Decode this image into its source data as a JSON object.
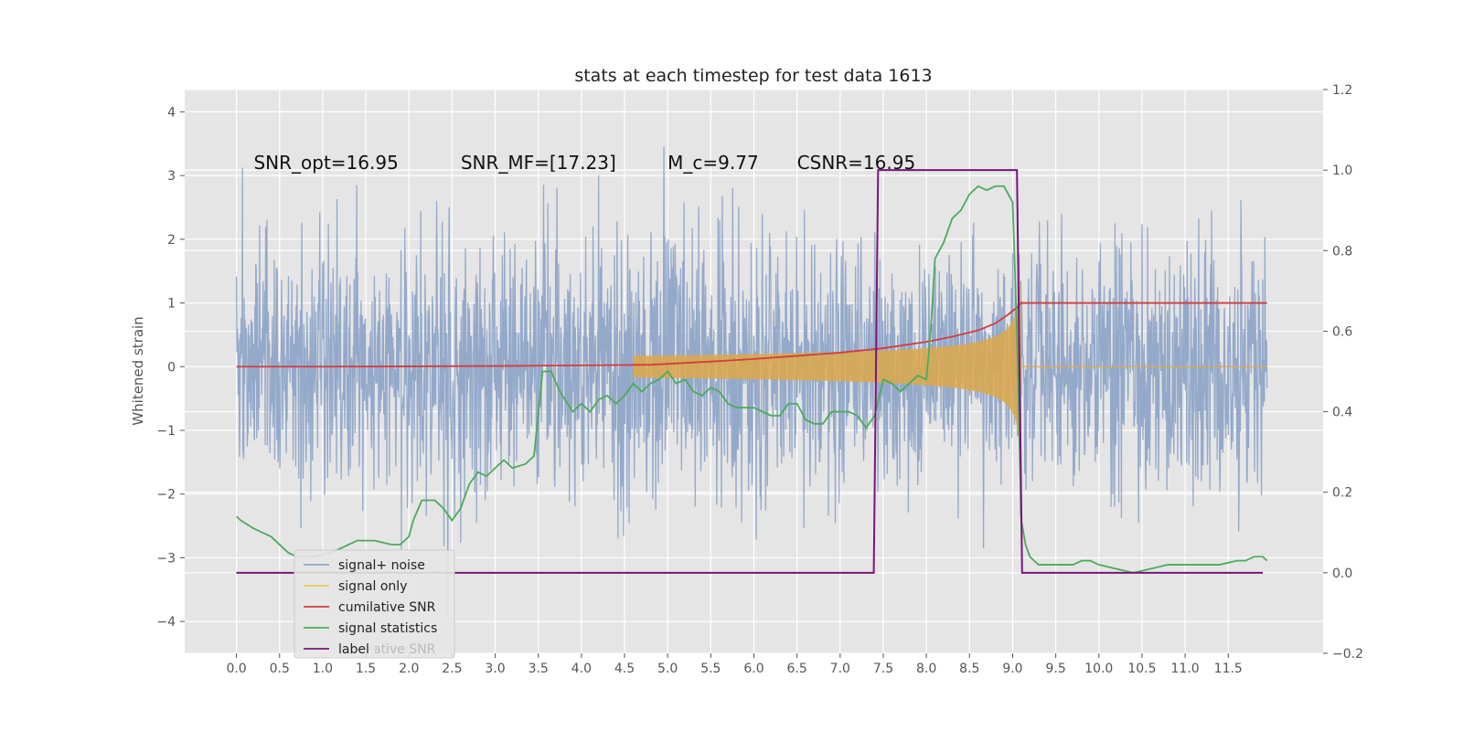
{
  "chart_data": {
    "type": "line",
    "title": "stats at each timestep for test data 1613",
    "ylabel": "Whitened strain",
    "xlabel": "",
    "xlim": [
      -0.6,
      12.6
    ],
    "ylim": [
      -4.5,
      4.35
    ],
    "y2lim": [
      -0.2,
      1.2
    ],
    "x_ticks": [
      "0.0",
      "0.5",
      "1.0",
      "1.5",
      "2.0",
      "2.5",
      "3.0",
      "3.5",
      "4.0",
      "4.5",
      "5.0",
      "5.5",
      "6.0",
      "6.5",
      "7.0",
      "7.5",
      "8.0",
      "8.5",
      "9.0",
      "9.5",
      "10.0",
      "10.5",
      "11.0",
      "11.5"
    ],
    "y_ticks": [
      "4",
      "3",
      "2",
      "1",
      "0",
      "−1",
      "−2",
      "−3",
      "−4"
    ],
    "y2_ticks": [
      "1.2",
      "1.0",
      "0.8",
      "0.6",
      "0.4",
      "0.2",
      "0.0",
      "−0.2"
    ],
    "grid": true,
    "annotations": [
      {
        "text": "SNR_opt=16.95",
        "x": 0.2,
        "y": 3.1
      },
      {
        "text": "SNR_MF=[17.23]",
        "x": 2.6,
        "y": 3.1
      },
      {
        "text": "M_c=9.77",
        "x": 5.0,
        "y": 3.1
      },
      {
        "text": "CSNR=16.95",
        "x": 6.5,
        "y": 3.1
      }
    ],
    "legend": {
      "placement": "lower-left",
      "entries": [
        "signal+ noise",
        "signal only",
        "cumilative SNR",
        "signal statistics",
        "label"
      ],
      "ghost_text": "cumilative SNR"
    },
    "series": [
      {
        "name": "signal+ noise",
        "axis": "left",
        "color": "#8fa5c8",
        "description_range": [
          0.0,
          11.95
        ],
        "noise_sigma": 1.0
      },
      {
        "name": "signal only",
        "axis": "left",
        "color": "#dda84a",
        "chirp_end": 9.1
      },
      {
        "name": "cumilative SNR",
        "axis": "left",
        "color": "#d23c3c",
        "x": [
          0.0,
          1.0,
          2.0,
          3.0,
          4.0,
          4.8,
          5.5,
          6.0,
          6.5,
          7.0,
          7.5,
          8.0,
          8.3,
          8.6,
          8.8,
          8.95,
          9.05,
          9.1,
          9.5,
          10.5,
          11.95
        ],
        "values": [
          0.0,
          0.0,
          0.005,
          0.01,
          0.02,
          0.03,
          0.08,
          0.12,
          0.17,
          0.22,
          0.29,
          0.39,
          0.47,
          0.57,
          0.68,
          0.82,
          0.93,
          1.0,
          1.0,
          1.0,
          1.0
        ]
      },
      {
        "name": "signal statistics",
        "axis": "right",
        "color": "#4caa5c",
        "x": [
          0.0,
          0.05,
          0.2,
          0.4,
          0.6,
          0.7,
          0.9,
          1.1,
          1.3,
          1.4,
          1.6,
          1.8,
          1.9,
          2.0,
          2.05,
          2.15,
          2.2,
          2.3,
          2.4,
          2.5,
          2.6,
          2.7,
          2.8,
          2.9,
          3.0,
          3.1,
          3.2,
          3.35,
          3.45,
          3.55,
          3.65,
          3.75,
          3.9,
          4.0,
          4.1,
          4.2,
          4.3,
          4.4,
          4.5,
          4.6,
          4.7,
          4.8,
          4.9,
          5.0,
          5.1,
          5.2,
          5.3,
          5.4,
          5.5,
          5.6,
          5.7,
          5.8,
          5.9,
          6.0,
          6.2,
          6.3,
          6.4,
          6.5,
          6.6,
          6.7,
          6.8,
          6.9,
          7.0,
          7.1,
          7.2,
          7.3,
          7.4,
          7.5,
          7.6,
          7.7,
          7.8,
          7.9,
          8.0,
          8.05,
          8.1,
          8.2,
          8.3,
          8.4,
          8.5,
          8.6,
          8.7,
          8.8,
          8.9,
          9.0,
          9.05,
          9.1,
          9.15,
          9.2,
          9.3,
          9.4,
          9.5,
          9.7,
          9.8,
          9.9,
          10.0,
          10.2,
          10.4,
          10.6,
          10.8,
          11.0,
          11.2,
          11.4,
          11.6,
          11.7,
          11.8,
          11.9,
          11.95
        ],
        "values": [
          0.14,
          0.13,
          0.11,
          0.09,
          0.05,
          0.04,
          0.04,
          0.05,
          0.07,
          0.08,
          0.08,
          0.07,
          0.07,
          0.09,
          0.13,
          0.18,
          0.18,
          0.18,
          0.16,
          0.13,
          0.16,
          0.22,
          0.25,
          0.24,
          0.26,
          0.28,
          0.26,
          0.27,
          0.29,
          0.5,
          0.5,
          0.45,
          0.4,
          0.42,
          0.4,
          0.43,
          0.44,
          0.42,
          0.44,
          0.47,
          0.45,
          0.47,
          0.48,
          0.5,
          0.47,
          0.48,
          0.45,
          0.44,
          0.46,
          0.45,
          0.42,
          0.41,
          0.41,
          0.41,
          0.39,
          0.39,
          0.42,
          0.42,
          0.38,
          0.37,
          0.37,
          0.4,
          0.4,
          0.4,
          0.39,
          0.36,
          0.39,
          0.48,
          0.47,
          0.45,
          0.47,
          0.49,
          0.48,
          0.6,
          0.78,
          0.82,
          0.88,
          0.9,
          0.94,
          0.96,
          0.95,
          0.96,
          0.96,
          0.92,
          0.6,
          0.13,
          0.07,
          0.04,
          0.02,
          0.02,
          0.02,
          0.02,
          0.03,
          0.03,
          0.02,
          0.01,
          0.0,
          0.01,
          0.02,
          0.02,
          0.02,
          0.02,
          0.03,
          0.03,
          0.04,
          0.04,
          0.03
        ]
      },
      {
        "name": "label",
        "axis": "right",
        "color": "#7a147a",
        "x": [
          0.0,
          7.39,
          7.44,
          9.05,
          9.11,
          11.9
        ],
        "values": [
          0.0,
          0.0,
          1.0,
          1.0,
          0.0,
          0.0
        ]
      }
    ]
  }
}
